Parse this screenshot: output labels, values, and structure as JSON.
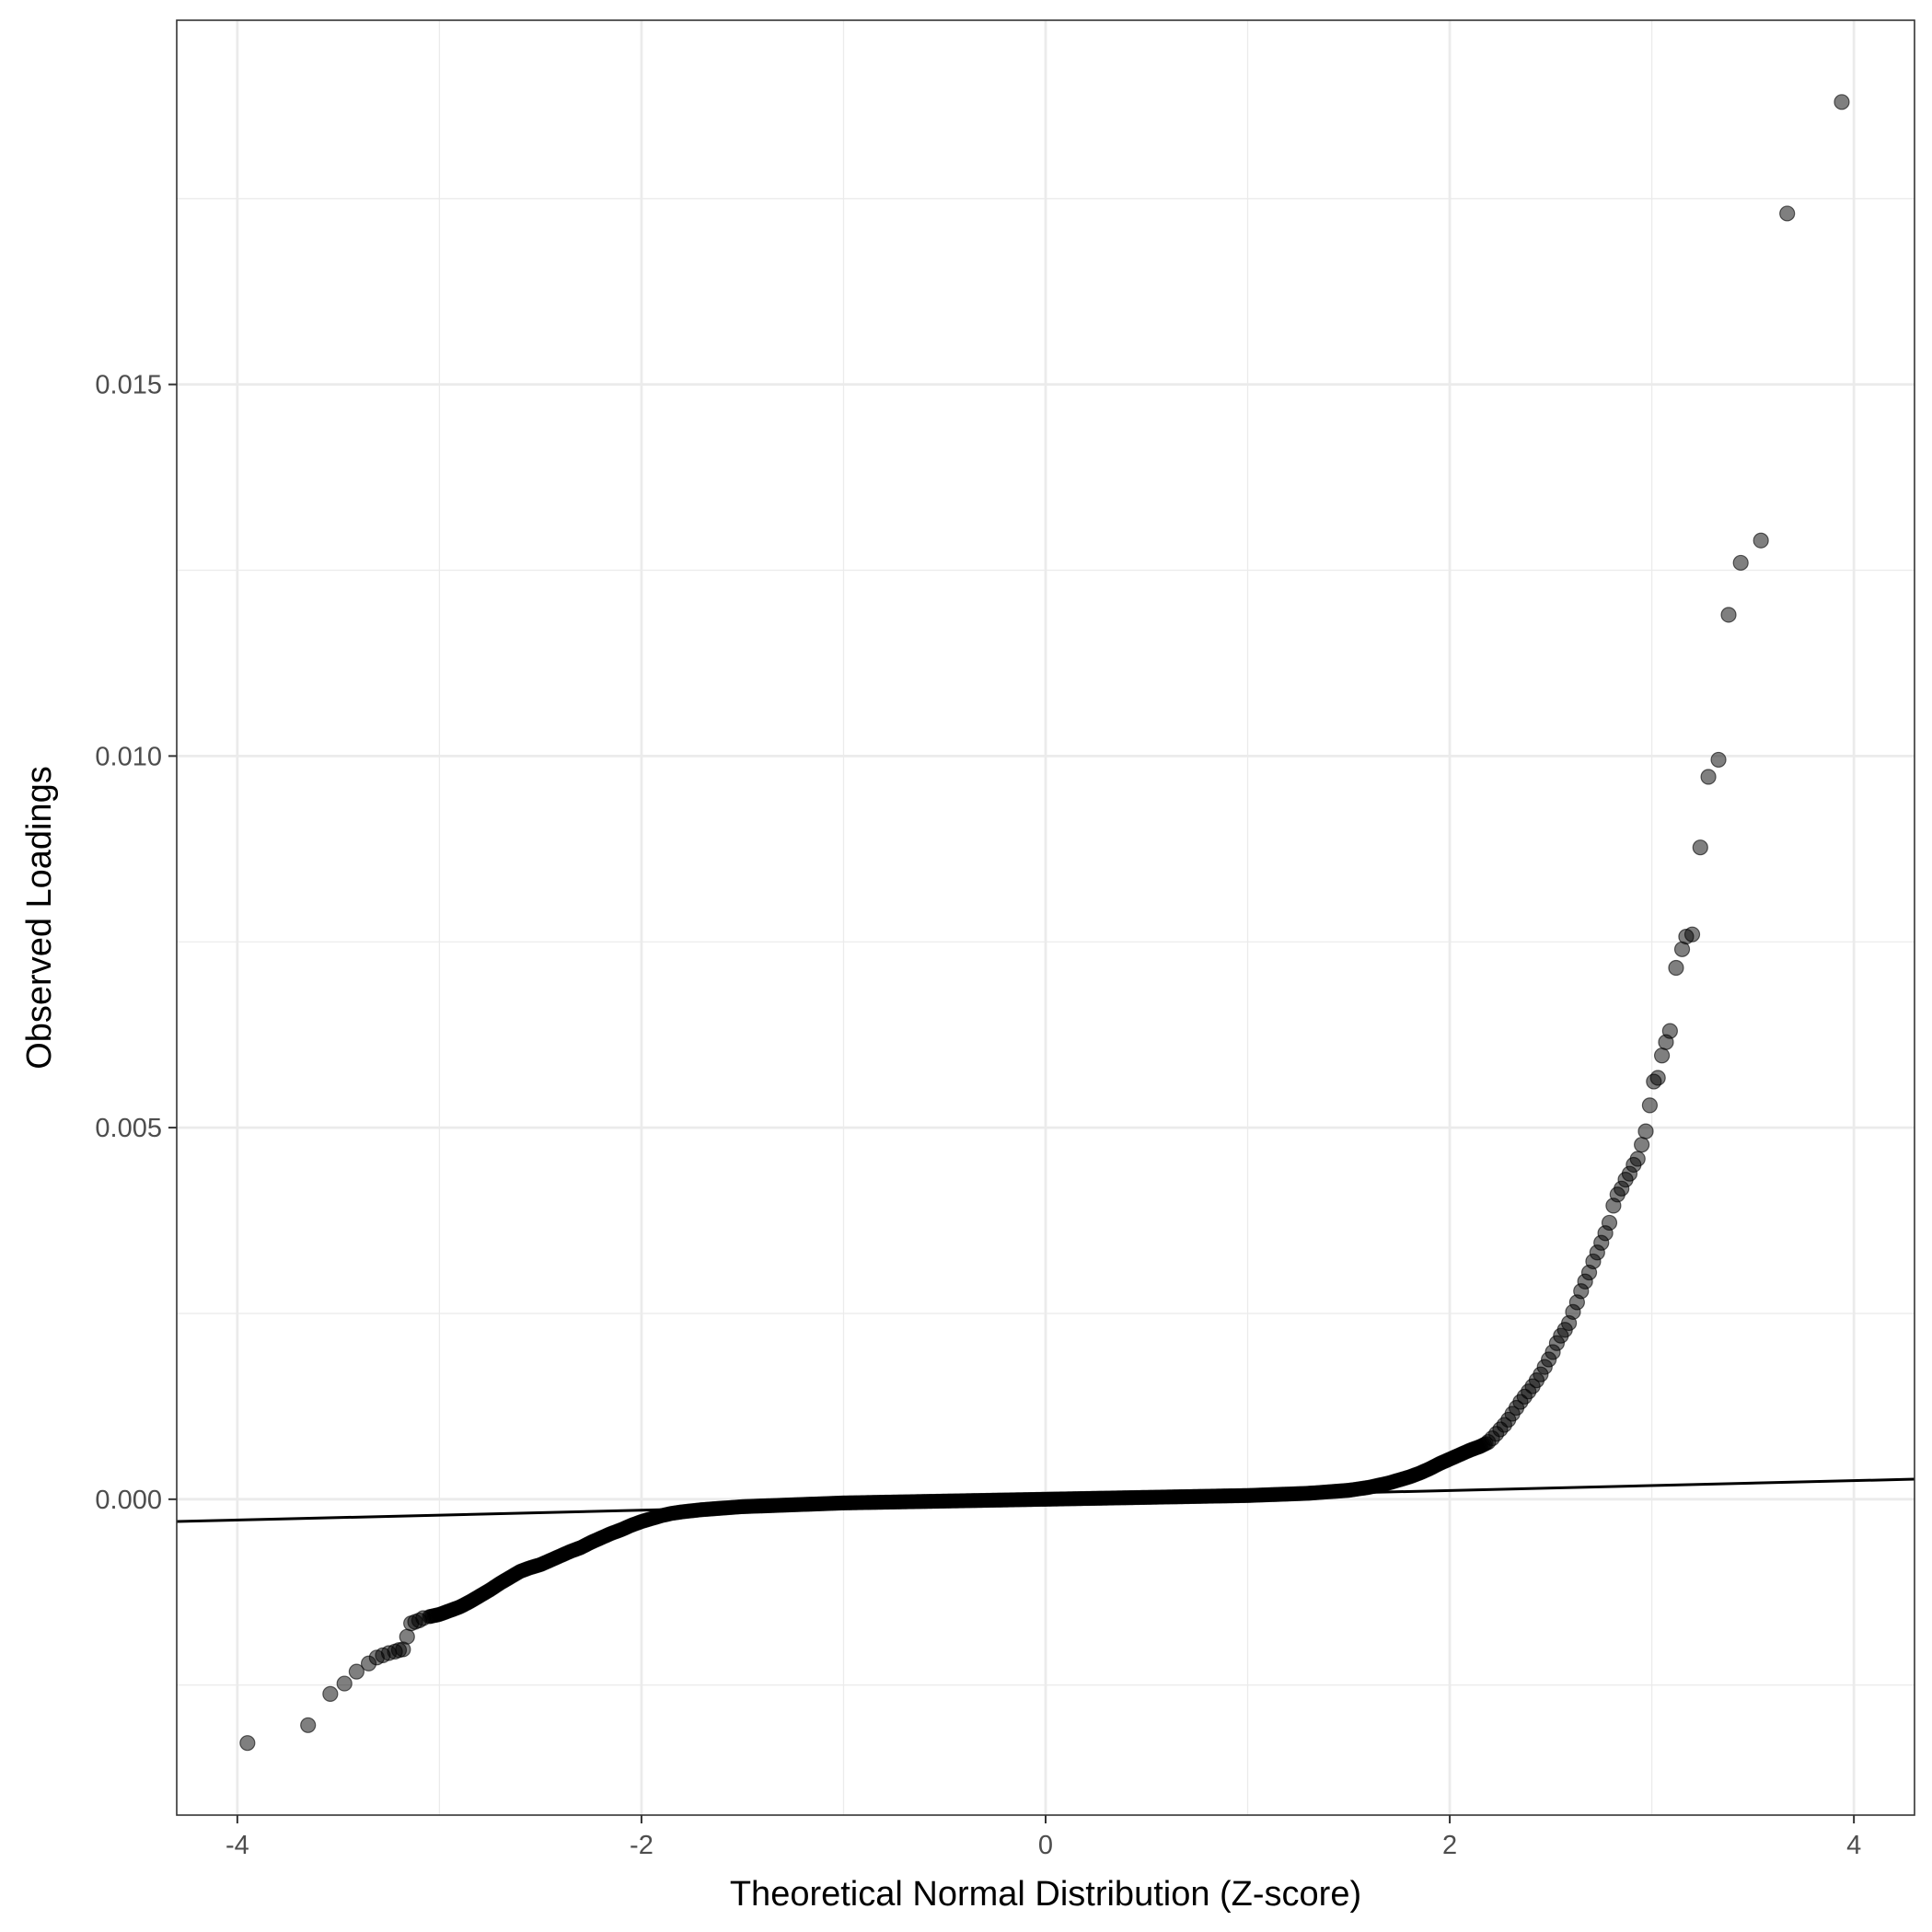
{
  "chart_data": {
    "type": "scatter",
    "title": "",
    "xlabel": "Theoretical Normal Distribution (Z-score)",
    "ylabel": "Observed Loadings",
    "xlim": [
      -4.3,
      4.3
    ],
    "ylim": [
      -0.00425,
      0.0199
    ],
    "x_ticks": [
      -4,
      -2,
      0,
      2,
      4
    ],
    "x_tick_labels": [
      "-4",
      "-2",
      "0",
      "2",
      "4"
    ],
    "y_ticks": [
      0.0,
      0.005,
      0.01,
      0.015
    ],
    "y_tick_labels": [
      "0.000",
      "0.005",
      "0.010",
      "0.015"
    ],
    "grid": true,
    "point_color": "#000000",
    "point_opacity": 0.5,
    "reference_line": {
      "x": [
        -4.3,
        4.3
      ],
      "y": [
        -0.0003,
        0.00027
      ],
      "color": "#000000"
    },
    "outlier_points": {
      "x": [
        3.94,
        3.67,
        3.54,
        3.44,
        3.38,
        3.33,
        3.28,
        3.24,
        3.2,
        3.17,
        3.15,
        3.12,
        3.09,
        3.07,
        3.05,
        3.03,
        3.01,
        2.99,
        2.97,
        2.95,
        2.93,
        2.91,
        2.89,
        2.87,
        2.85,
        2.83,
        2.81,
        2.79,
        2.77,
        2.75,
        2.73,
        2.71,
        2.69,
        2.67,
        2.65,
        2.63,
        2.61,
        2.59,
        2.57,
        2.55,
        2.53,
        2.51,
        2.49,
        2.47,
        2.45,
        2.43,
        2.41,
        2.39,
        2.37,
        2.35,
        2.33,
        2.31,
        2.29,
        2.27,
        2.25,
        2.23,
        2.21,
        2.19,
        -3.08,
        -3.1,
        -3.12,
        -3.14,
        -3.16,
        -3.18,
        -3.2,
        -3.22,
        -3.25,
        -3.28,
        -3.31,
        -3.35,
        -3.41,
        -3.47,
        -3.54,
        -3.65,
        -3.95
      ],
      "y": [
        0.0188,
        0.0173,
        0.0129,
        0.0126,
        0.0119,
        0.00995,
        0.00972,
        0.00877,
        0.0076,
        0.00757,
        0.0074,
        0.00715,
        0.0063,
        0.00615,
        0.00597,
        0.00567,
        0.00562,
        0.0053,
        0.00495,
        0.00477,
        0.00458,
        0.0045,
        0.00438,
        0.0043,
        0.00418,
        0.0041,
        0.00395,
        0.00372,
        0.00358,
        0.00345,
        0.00332,
        0.0032,
        0.00305,
        0.00293,
        0.0028,
        0.00265,
        0.00252,
        0.00237,
        0.00228,
        0.0022,
        0.0021,
        0.00198,
        0.00188,
        0.00178,
        0.00168,
        0.0016,
        0.00152,
        0.00145,
        0.00138,
        0.00131,
        0.00123,
        0.00115,
        0.00107,
        0.001,
        0.00094,
        0.00088,
        0.00082,
        0.00077,
        -0.0016,
        -0.00163,
        -0.00165,
        -0.00167,
        -0.00185,
        -0.00202,
        -0.00203,
        -0.00205,
        -0.00207,
        -0.0021,
        -0.00213,
        -0.00221,
        -0.00232,
        -0.00248,
        -0.00262,
        -0.00304,
        -0.00328
      ]
    },
    "bulk_curve": {
      "x": [
        -3.05,
        -3.0,
        -2.95,
        -2.9,
        -2.85,
        -2.8,
        -2.75,
        -2.7,
        -2.65,
        -2.6,
        -2.55,
        -2.5,
        -2.45,
        -2.4,
        -2.35,
        -2.3,
        -2.25,
        -2.2,
        -2.15,
        -2.1,
        -2.05,
        -2.0,
        -1.95,
        -1.9,
        -1.85,
        -1.8,
        -1.7,
        -1.6,
        -1.5,
        -1.4,
        -1.3,
        -1.2,
        -1.0,
        -0.8,
        -0.6,
        -0.4,
        -0.2,
        0.0,
        0.2,
        0.4,
        0.6,
        0.8,
        1.0,
        1.1,
        1.2,
        1.3,
        1.4,
        1.5,
        1.55,
        1.6,
        1.65,
        1.7,
        1.75,
        1.8,
        1.85,
        1.9,
        1.95,
        2.0,
        2.05,
        2.1,
        2.15,
        2.18
      ],
      "y": [
        -0.00158,
        -0.00155,
        -0.0015,
        -0.00145,
        -0.00138,
        -0.0013,
        -0.00122,
        -0.00113,
        -0.00105,
        -0.00097,
        -0.00092,
        -0.00088,
        -0.00082,
        -0.00076,
        -0.0007,
        -0.00065,
        -0.00058,
        -0.00052,
        -0.00046,
        -0.00041,
        -0.00035,
        -0.0003,
        -0.00026,
        -0.00022,
        -0.00019,
        -0.00017,
        -0.00014,
        -0.00012,
        -0.0001,
        -9e-05,
        -8e-05,
        -7e-05,
        -5e-05,
        -4e-05,
        -3e-05,
        -2e-05,
        -1e-05,
        0.0,
        1e-05,
        2e-05,
        3e-05,
        4e-05,
        5e-05,
        6e-05,
        7e-05,
        8e-05,
        0.0001,
        0.00012,
        0.00014,
        0.00016,
        0.00019,
        0.00022,
        0.00026,
        0.0003,
        0.00035,
        0.00041,
        0.00048,
        0.00054,
        0.0006,
        0.00066,
        0.00071,
        0.00075
      ]
    }
  }
}
